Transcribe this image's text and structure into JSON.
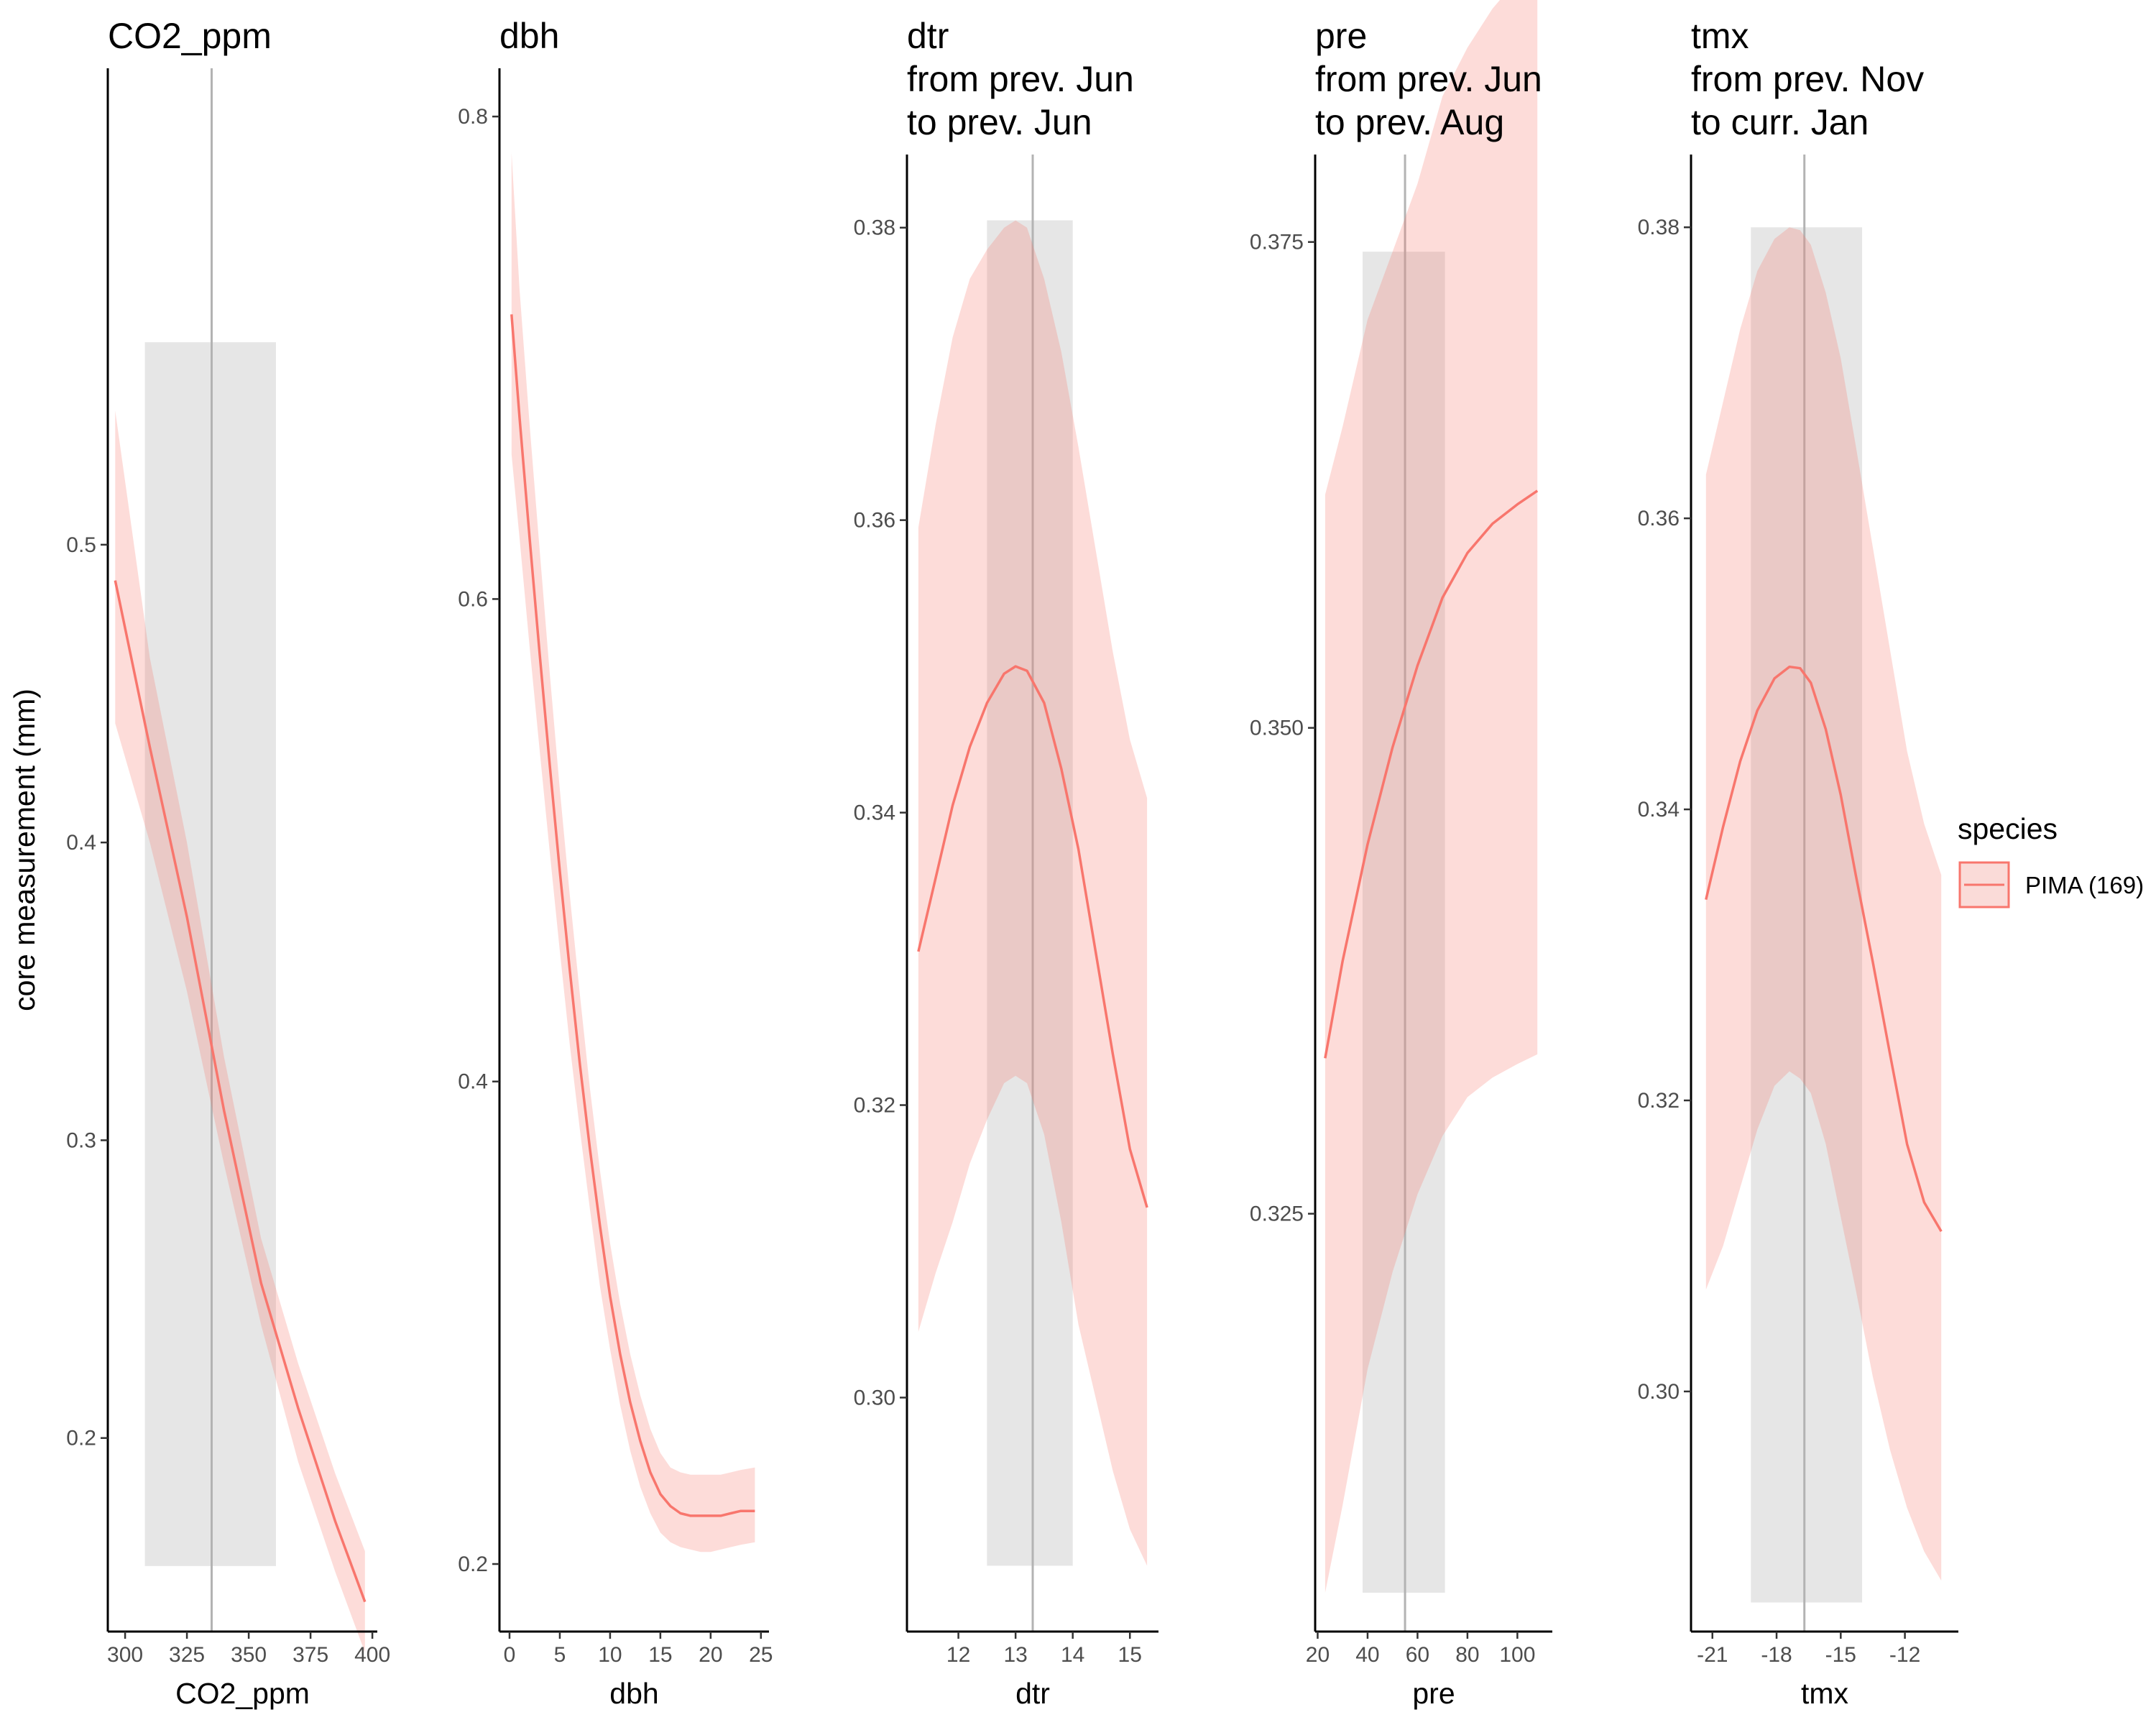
{
  "chart_data": {
    "type": "line",
    "ylabel": "core measurement (mm)",
    "series_color": "#F8766D",
    "band_color": "#FADBD8",
    "highlight_color": "#E6E6E6",
    "vline_color": "#B3B3B3",
    "legend": {
      "title": "species",
      "placement": "right",
      "label": "PIMA (169)"
    },
    "panels": [
      {
        "id": "co2",
        "title": [
          "CO2_ppm"
        ],
        "xlabel": "CO2_ppm",
        "xlim": [
          293,
          402
        ],
        "ylim": [
          0.135,
          0.66
        ],
        "xticks": [
          {
            "v": 300,
            "label": "300"
          },
          {
            "v": 325,
            "label": "325"
          },
          {
            "v": 350,
            "label": "350"
          },
          {
            "v": 375,
            "label": "375"
          },
          {
            "v": 400,
            "label": "400"
          }
        ],
        "yticks": [
          {
            "v": 0.2,
            "label": "0.2"
          },
          {
            "v": 0.3,
            "label": "0.3"
          },
          {
            "v": 0.4,
            "label": "0.4"
          },
          {
            "v": 0.5,
            "label": "0.5"
          }
        ],
        "highlight": {
          "x": [
            308,
            361
          ],
          "y": [
            0.157,
            0.568
          ]
        },
        "vline": 335,
        "x": [
          296,
          310,
          325,
          340,
          355,
          370,
          385,
          397
        ],
        "y": [
          0.488,
          0.432,
          0.375,
          0.31,
          0.252,
          0.21,
          0.172,
          0.145
        ],
        "lower": [
          0.44,
          0.4,
          0.35,
          0.292,
          0.238,
          0.192,
          0.155,
          0.128
        ],
        "upper": [
          0.545,
          0.462,
          0.4,
          0.328,
          0.267,
          0.225,
          0.188,
          0.162
        ]
      },
      {
        "id": "dbh",
        "title": [
          "dbh"
        ],
        "xlabel": "dbh",
        "xlim": [
          -1.0,
          25.8
        ],
        "ylim": [
          0.172,
          0.82
        ],
        "xticks": [
          {
            "v": 0,
            "label": "0"
          },
          {
            "v": 5,
            "label": "5"
          },
          {
            "v": 10,
            "label": "10"
          },
          {
            "v": 15,
            "label": "15"
          },
          {
            "v": 20,
            "label": "20"
          },
          {
            "v": 25,
            "label": "25"
          }
        ],
        "yticks": [
          {
            "v": 0.2,
            "label": "0.2"
          },
          {
            "v": 0.4,
            "label": "0.4"
          },
          {
            "v": 0.6,
            "label": "0.6"
          },
          {
            "v": 0.8,
            "label": "0.8"
          }
        ],
        "x": [
          0.2,
          1,
          2,
          3,
          4,
          5,
          6,
          7,
          8,
          9,
          10,
          11,
          12,
          13,
          14,
          15,
          16,
          17,
          18,
          19,
          20,
          21,
          22,
          23,
          24.4
        ],
        "y": [
          0.718,
          0.675,
          0.625,
          0.577,
          0.531,
          0.487,
          0.446,
          0.407,
          0.372,
          0.34,
          0.311,
          0.287,
          0.267,
          0.251,
          0.238,
          0.229,
          0.224,
          0.221,
          0.22,
          0.22,
          0.22,
          0.22,
          0.221,
          0.222,
          0.222
        ],
        "lower": [
          0.66,
          0.625,
          0.58,
          0.537,
          0.495,
          0.454,
          0.415,
          0.38,
          0.347,
          0.315,
          0.289,
          0.266,
          0.247,
          0.232,
          0.221,
          0.213,
          0.209,
          0.207,
          0.206,
          0.205,
          0.205,
          0.206,
          0.207,
          0.208,
          0.209
        ],
        "upper": [
          0.785,
          0.728,
          0.672,
          0.62,
          0.569,
          0.521,
          0.477,
          0.436,
          0.397,
          0.363,
          0.333,
          0.308,
          0.287,
          0.27,
          0.256,
          0.246,
          0.24,
          0.238,
          0.237,
          0.237,
          0.237,
          0.237,
          0.238,
          0.239,
          0.24
        ]
      },
      {
        "id": "dtr",
        "title": [
          "dtr",
          "from prev. Jun",
          "to prev. Jun"
        ],
        "xlabel": "dtr",
        "xlim": [
          11.1,
          15.5
        ],
        "ylim": [
          0.284,
          0.385
        ],
        "xticks": [
          {
            "v": 12,
            "label": "12"
          },
          {
            "v": 13,
            "label": "13"
          },
          {
            "v": 14,
            "label": "14"
          },
          {
            "v": 15,
            "label": "15"
          }
        ],
        "yticks": [
          {
            "v": 0.3,
            "label": "0.30"
          },
          {
            "v": 0.32,
            "label": "0.32"
          },
          {
            "v": 0.34,
            "label": "0.34"
          },
          {
            "v": 0.36,
            "label": "0.36"
          },
          {
            "v": 0.38,
            "label": "0.38"
          }
        ],
        "highlight": {
          "x": [
            12.5,
            14.0
          ],
          "y": [
            0.2885,
            0.3805
          ]
        },
        "vline": 13.3,
        "x": [
          11.3,
          11.6,
          11.9,
          12.2,
          12.5,
          12.8,
          13.0,
          13.2,
          13.5,
          13.8,
          14.1,
          14.4,
          14.7,
          15.0,
          15.3
        ],
        "y": [
          0.3305,
          0.3355,
          0.3405,
          0.3445,
          0.3475,
          0.3495,
          0.35,
          0.3497,
          0.3475,
          0.343,
          0.3375,
          0.3305,
          0.3235,
          0.317,
          0.313
        ],
        "lower": [
          0.3045,
          0.3085,
          0.312,
          0.316,
          0.319,
          0.3215,
          0.322,
          0.3215,
          0.318,
          0.312,
          0.305,
          0.3,
          0.295,
          0.291,
          0.2885
        ],
        "upper": [
          0.3595,
          0.3665,
          0.3725,
          0.3765,
          0.3785,
          0.38,
          0.3805,
          0.38,
          0.3765,
          0.3715,
          0.365,
          0.358,
          0.351,
          0.345,
          0.341
        ]
      },
      {
        "id": "pre",
        "title": [
          "pre",
          "from prev. Jun",
          "to prev. Aug"
        ],
        "xlabel": "pre",
        "xlim": [
          19,
          114
        ],
        "ylim": [
          0.3035,
          0.3795
        ],
        "xticks": [
          {
            "v": 20,
            "label": "20"
          },
          {
            "v": 40,
            "label": "40"
          },
          {
            "v": 60,
            "label": "60"
          },
          {
            "v": 80,
            "label": "80"
          },
          {
            "v": 100,
            "label": "100"
          }
        ],
        "yticks": [
          {
            "v": 0.325,
            "label": "0.325"
          },
          {
            "v": 0.35,
            "label": "0.350"
          },
          {
            "v": 0.375,
            "label": "0.375"
          }
        ],
        "highlight": {
          "x": [
            38,
            71
          ],
          "y": [
            0.3055,
            0.3745
          ]
        },
        "vline": 55,
        "x": [
          23,
          30,
          40,
          50,
          60,
          70,
          80,
          90,
          100,
          108
        ],
        "y": [
          0.333,
          0.338,
          0.344,
          0.349,
          0.3532,
          0.3567,
          0.359,
          0.3605,
          0.3615,
          0.3622
        ],
        "lower": [
          0.3055,
          0.31,
          0.317,
          0.322,
          0.326,
          0.329,
          0.331,
          0.332,
          0.3327,
          0.3332
        ],
        "upper": [
          0.362,
          0.3655,
          0.371,
          0.3745,
          0.378,
          0.3825,
          0.385,
          0.387,
          0.3885,
          0.3895
        ]
      },
      {
        "id": "tmx",
        "title": [
          "tmx",
          "from prev. Nov",
          "to curr. Jan"
        ],
        "xlabel": "tmx",
        "xlim": [
          -22.0,
          -9.5
        ],
        "ylim": [
          0.2835,
          0.385
        ],
        "xticks": [
          {
            "v": -21,
            "label": "-21"
          },
          {
            "v": -18,
            "label": "-18"
          },
          {
            "v": -15,
            "label": "-15"
          },
          {
            "v": -12,
            "label": "-12"
          }
        ],
        "yticks": [
          {
            "v": 0.3,
            "label": "0.30"
          },
          {
            "v": 0.32,
            "label": "0.32"
          },
          {
            "v": 0.34,
            "label": "0.34"
          },
          {
            "v": 0.36,
            "label": "0.36"
          },
          {
            "v": 0.38,
            "label": "0.38"
          }
        ],
        "highlight": {
          "x": [
            -19.2,
            -14.0
          ],
          "y": [
            0.2855,
            0.38
          ]
        },
        "vline": -16.7,
        "x": [
          -21.3,
          -20.5,
          -19.7,
          -18.9,
          -18.1,
          -17.4,
          -16.9,
          -16.4,
          -15.7,
          -15.0,
          -14.3,
          -13.5,
          -12.7,
          -11.9,
          -11.1,
          -10.3
        ],
        "y": [
          0.3338,
          0.3388,
          0.3433,
          0.3468,
          0.349,
          0.3498,
          0.3497,
          0.3487,
          0.3455,
          0.341,
          0.3355,
          0.3295,
          0.3232,
          0.317,
          0.313,
          0.311
        ],
        "lower": [
          0.307,
          0.31,
          0.314,
          0.318,
          0.321,
          0.322,
          0.3215,
          0.3205,
          0.317,
          0.312,
          0.307,
          0.301,
          0.296,
          0.292,
          0.289,
          0.287
        ],
        "upper": [
          0.363,
          0.368,
          0.373,
          0.377,
          0.3792,
          0.38,
          0.3798,
          0.3788,
          0.3755,
          0.371,
          0.365,
          0.358,
          0.351,
          0.344,
          0.339,
          0.3355
        ]
      }
    ]
  }
}
